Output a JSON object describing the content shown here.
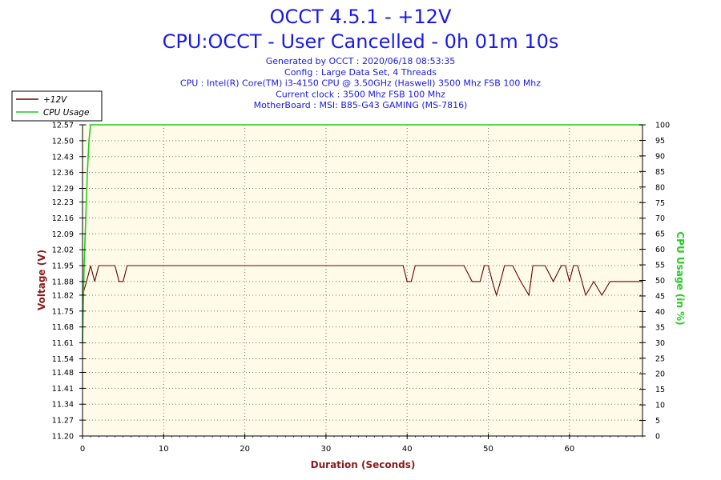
{
  "header": {
    "title": "OCCT 4.5.1 - +12V",
    "subtitle": "CPU:OCCT - User Cancelled - 0h 01m 10s",
    "info_lines": [
      "Generated by OCCT : 2020/06/18 08:53:35",
      "Config : Large Data Set, 4 Threads",
      "CPU : Intel(R) Core(TM) i3-4150 CPU @ 3.50GHz (Haswell) 3500 Mhz FSB 100 Mhz",
      "Current clock : 3500 Mhz FSB 100 Mhz",
      "MotherBoard : MSI: B85-G43 GAMING (MS-7816)"
    ]
  },
  "colors": {
    "title": "#1a1ae6",
    "voltage_line": "#6b0000",
    "cpu_line": "#22cc22",
    "left_axis_label": "#8b1a1a",
    "right_axis_label": "#22cc22",
    "x_axis_label": "#8b1a1a",
    "plot_background": "#fffbe8",
    "grid": "#777777"
  },
  "chart_data": {
    "type": "line",
    "xlabel": "Duration (Seconds)",
    "ylabel_left": "Voltage (V)",
    "ylabel_right": "CPU Usage (in %)",
    "xlim": [
      0,
      69
    ],
    "ylim_left": [
      11.2,
      12.57
    ],
    "ylim_right": [
      0,
      100
    ],
    "x_ticks": [
      0,
      10,
      20,
      30,
      40,
      50,
      60
    ],
    "y_ticks_left": [
      "11.20",
      "11.27",
      "11.34",
      "11.41",
      "11.48",
      "11.54",
      "11.61",
      "11.68",
      "11.75",
      "11.82",
      "11.88",
      "11.95",
      "12.02",
      "12.09",
      "12.16",
      "12.23",
      "12.29",
      "12.36",
      "12.43",
      "12.50",
      "12.57"
    ],
    "y_ticks_right": [
      0,
      5,
      10,
      15,
      20,
      25,
      30,
      35,
      40,
      45,
      50,
      55,
      60,
      65,
      70,
      75,
      80,
      85,
      90,
      95,
      100
    ],
    "grid": true,
    "legend": {
      "placement": "top-left",
      "entries": [
        "+12V",
        "CPU Usage"
      ]
    },
    "series": [
      {
        "name": "+12V",
        "axis": "left",
        "x": [
          0,
          0.5,
          1,
          1.5,
          2,
          2.5,
          3,
          3.5,
          4,
          4.5,
          5,
          5.5,
          6,
          8,
          10,
          15,
          20,
          25,
          30,
          35,
          39.5,
          40,
          40.5,
          41,
          41.5,
          42,
          42.5,
          45,
          46,
          47,
          48,
          48.5,
          49,
          49.5,
          50,
          50.5,
          51,
          51.5,
          52,
          52.5,
          53,
          54,
          55,
          55.5,
          56,
          57,
          58,
          59,
          59.5,
          60,
          60.5,
          61,
          62,
          63,
          64,
          65,
          66,
          67,
          68,
          69
        ],
        "y": [
          11.82,
          11.88,
          11.95,
          11.88,
          11.95,
          11.95,
          11.95,
          11.95,
          11.95,
          11.88,
          11.88,
          11.95,
          11.95,
          11.95,
          11.95,
          11.95,
          11.95,
          11.95,
          11.95,
          11.95,
          11.95,
          11.88,
          11.88,
          11.95,
          11.95,
          11.95,
          11.95,
          11.95,
          11.95,
          11.95,
          11.88,
          11.88,
          11.88,
          11.95,
          11.95,
          11.88,
          11.82,
          11.88,
          11.95,
          11.95,
          11.95,
          11.88,
          11.82,
          11.95,
          11.95,
          11.95,
          11.88,
          11.95,
          11.95,
          11.88,
          11.95,
          11.95,
          11.82,
          11.88,
          11.82,
          11.88,
          11.88,
          11.88,
          11.88,
          11.88
        ]
      },
      {
        "name": "CPU Usage",
        "axis": "right",
        "x": [
          0,
          0.2,
          0.4,
          0.6,
          0.8,
          1,
          69
        ],
        "y": [
          30,
          55,
          70,
          85,
          95,
          100,
          100
        ]
      }
    ]
  }
}
